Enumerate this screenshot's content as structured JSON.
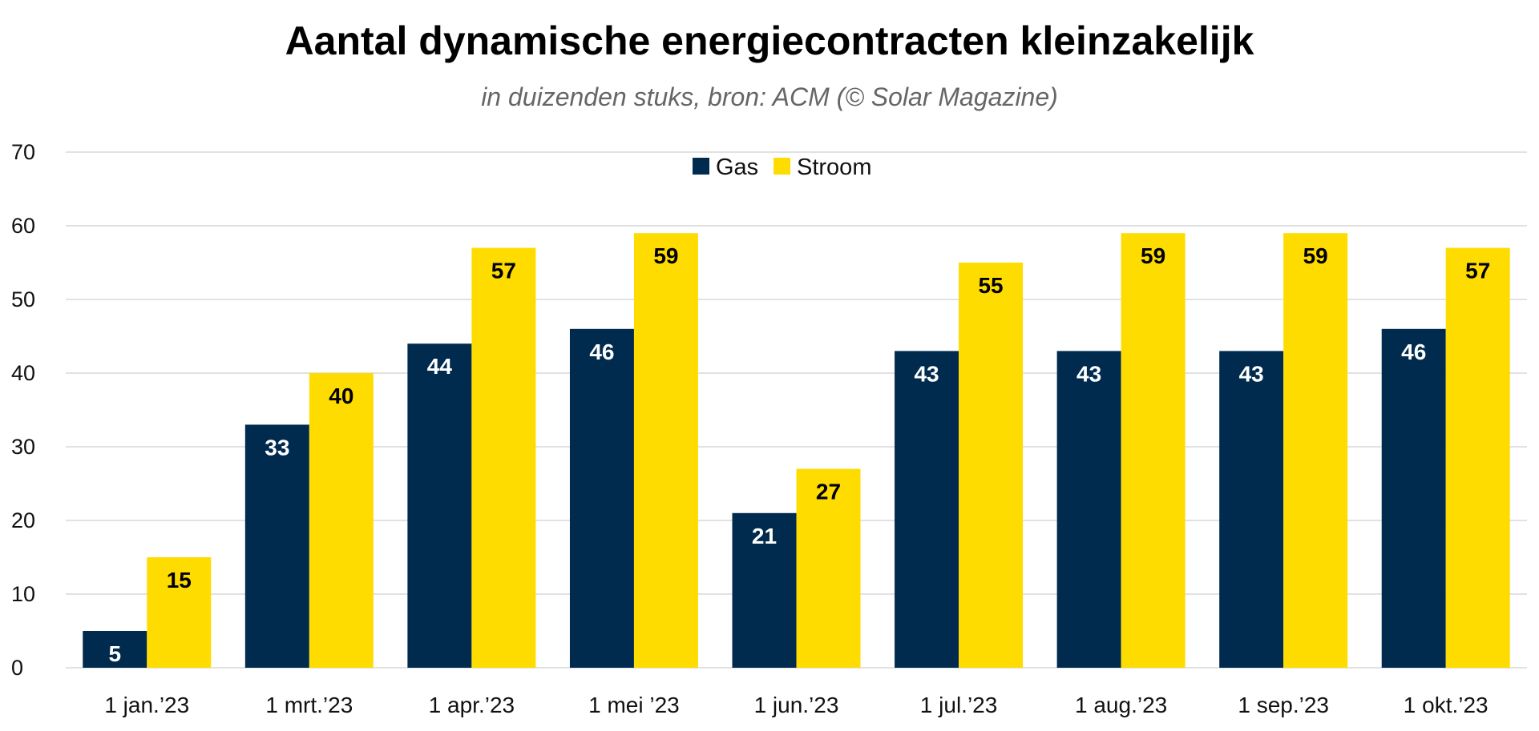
{
  "title": "Aantal dynamische energiecontracten kleinzakelijk",
  "subtitle": "in duizenden stuks, bron: ACM (© Solar Magazine)",
  "colors": {
    "gas": "#002b4f",
    "stroom": "#ffdc00",
    "grid": "#d9d9d9",
    "gas_label": "#ffffff",
    "stroom_label": "#000000"
  },
  "chart_data": {
    "type": "bar",
    "title": "Aantal dynamische energiecontracten kleinzakelijk",
    "subtitle": "in duizenden stuks, bron: ACM (© Solar Magazine)",
    "xlabel": "",
    "ylabel": "",
    "ylim": [
      0,
      70
    ],
    "yticks": [
      0,
      10,
      20,
      30,
      40,
      50,
      60,
      70
    ],
    "grid": true,
    "legend_position": "top-center",
    "categories": [
      "1 jan.’23",
      "1 mrt.’23",
      "1 apr.’23",
      "1 mei ’23",
      "1 jun.’23",
      "1 jul.’23",
      "1 aug.’23",
      "1 sep.’23",
      "1 okt.’23"
    ],
    "series": [
      {
        "name": "Gas",
        "color": "#002b4f",
        "values": [
          5,
          33,
          44,
          46,
          21,
          43,
          43,
          43,
          46
        ]
      },
      {
        "name": "Stroom",
        "color": "#ffdc00",
        "values": [
          15,
          40,
          57,
          59,
          27,
          55,
          59,
          59,
          57
        ]
      }
    ]
  }
}
